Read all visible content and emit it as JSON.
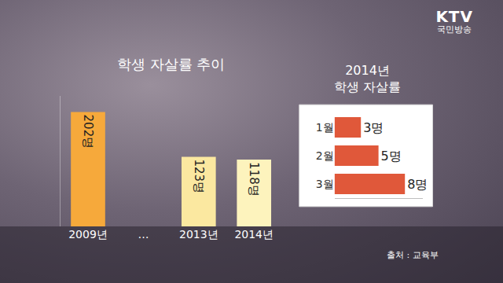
{
  "logo": {
    "brand": "KTV",
    "name": "국민방송"
  },
  "source": "출처 : 교육부",
  "chart_data": [
    {
      "type": "bar",
      "title": "학생 자살률 추이",
      "categories": [
        "2009년",
        "…",
        "2013년",
        "2014년"
      ],
      "values": [
        202,
        null,
        123,
        118
      ],
      "value_labels": [
        "202명",
        null,
        "123명",
        "118명"
      ],
      "colors": [
        "#f6a93b",
        null,
        "#fbe8a0",
        "#fdf3bd"
      ],
      "ylim": [
        0,
        230
      ],
      "yticks": [],
      "tick_labels": "x",
      "data_labels": true,
      "grid": false
    },
    {
      "type": "bar",
      "title": "2014년 학생 자살률",
      "orientation": "horizontal",
      "categories": [
        "1월",
        "2월",
        "3월"
      ],
      "values": [
        3,
        5,
        8
      ],
      "value_labels": [
        "3명",
        "5명",
        "8명"
      ],
      "color": "#e0583a",
      "xlim": [
        0,
        10
      ],
      "xticks": [],
      "tick_labels": "y",
      "data_labels": true,
      "grid": false
    }
  ]
}
